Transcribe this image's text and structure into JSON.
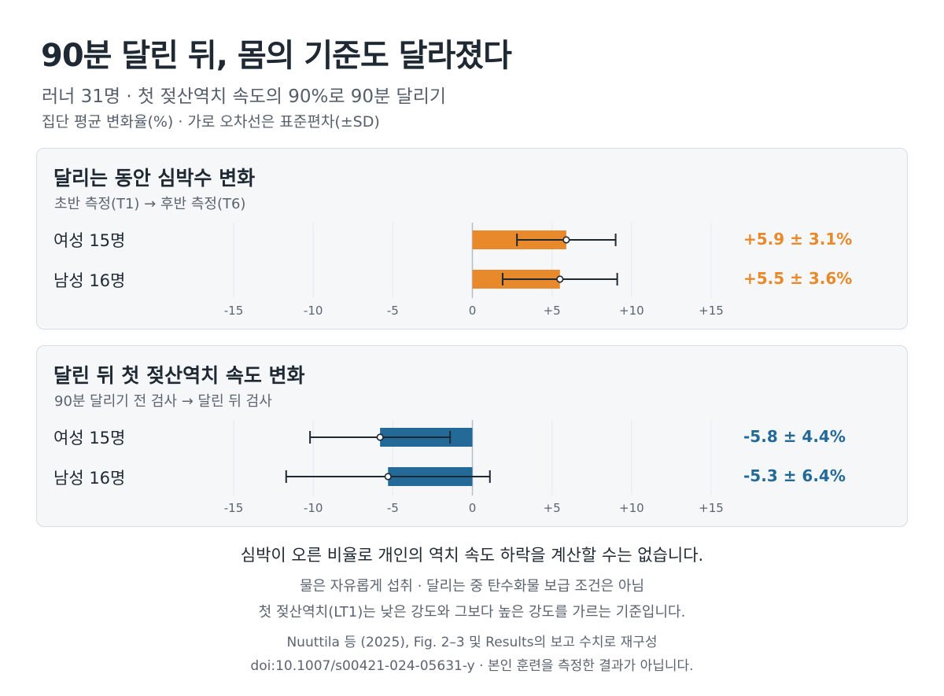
{
  "title": "90분 달린 뒤, 몸의 기준도 달라졌다",
  "subtitle": "러너 31명 · 첫 젖산역치 속도의 90%로 90분 달리기",
  "subtitle2": "집단 평균 변화율(%) · 가로 오차선은 표준편차(±SD)",
  "colors": {
    "orange": "#e8892c",
    "blue": "#236a98",
    "error_bar": "#1f2933"
  },
  "chart_data": [
    {
      "type": "bar",
      "title": "달리는 동안 심박수 변화",
      "subtitle": "초반 측정(T1) → 후반 측정(T6)",
      "color": "#e8892c",
      "categories": [
        "여성 15명",
        "남성 16명"
      ],
      "values": [
        5.9,
        5.5
      ],
      "sd": [
        3.1,
        3.6
      ],
      "value_labels": [
        "+5.9 ± 3.1%",
        "+5.5 ± 3.6%"
      ],
      "xlim": [
        -15,
        15
      ],
      "xticks": [
        "-15",
        "-10",
        "-5",
        "0",
        "+5",
        "+10",
        "+15"
      ],
      "orientation": "horizontal",
      "grid": true
    },
    {
      "type": "bar",
      "title": "달린 뒤 첫 젖산역치 속도 변화",
      "subtitle": "90분 달리기 전 검사 → 달린 뒤 검사",
      "color": "#236a98",
      "categories": [
        "여성 15명",
        "남성 16명"
      ],
      "values": [
        -5.8,
        -5.3
      ],
      "sd": [
        4.4,
        6.4
      ],
      "value_labels": [
        "-5.8 ± 4.4%",
        "-5.3 ± 6.4%"
      ],
      "xlim": [
        -15,
        15
      ],
      "xticks": [
        "-15",
        "-10",
        "-5",
        "0",
        "+5",
        "+10",
        "+15"
      ],
      "orientation": "horizontal",
      "grid": true
    }
  ],
  "footer": {
    "main": "심박이 오른 비율로 개인의 역치 속도 하락을 계산할 수는 없습니다.",
    "note1": "물은 자유롭게 섭취 · 달리는 중 탄수화물 보급 조건은 아님",
    "note2": "첫 젖산역치(LT1)는 낮은 강도와 그보다 높은 강도를 가르는 기준입니다.",
    "source1": "Nuuttila 등 (2025), Fig. 2–3 및 Results의 보고 수치로 재구성",
    "source2": "doi:10.1007/s00421-024-05631-y · 본인 훈련을 측정한 결과가 아닙니다."
  }
}
